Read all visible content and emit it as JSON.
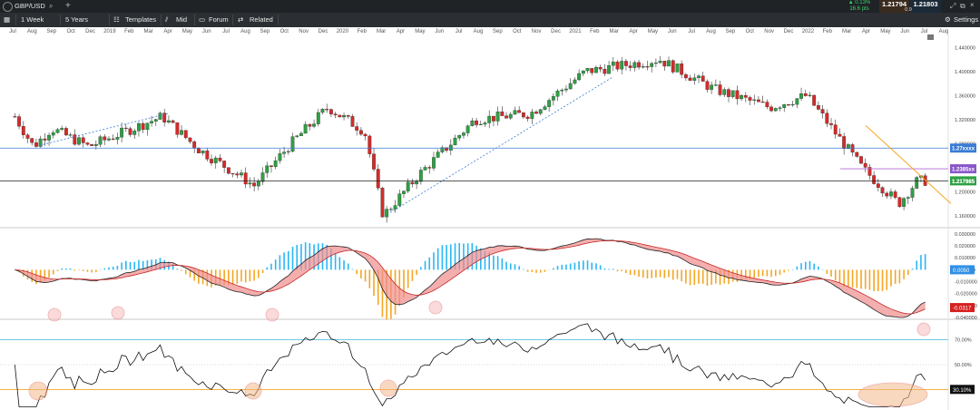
{
  "topbar": {
    "symbol": "GBP/USD"
  },
  "toolbar": {
    "items": [
      {
        "label": "1 Week"
      },
      {
        "label": "5 Years"
      },
      {
        "label": "Templates"
      },
      {
        "label": "Mid"
      },
      {
        "label": "Forum"
      },
      {
        "label": "Related"
      }
    ],
    "settings_label": "Settings"
  },
  "quote": {
    "change_pct": "▲ 0.13%",
    "change_pips": "16.6 pts",
    "bid": "1.21794",
    "ask": "1.21803",
    "spread": "0.9"
  },
  "colors": {
    "up": "#2ea043",
    "down": "#d62a2a",
    "macd_pos": "#29b6f6",
    "macd_neg": "#f5a623",
    "rsi_line": "#111111",
    "band": "#f3b98a",
    "resistance": "#f5a623",
    "support": "#3a7bd5"
  },
  "chart_data": [
    {
      "type": "candlestick",
      "title": "GBP/USD",
      "x_ticks": [
        "Jul",
        "Aug",
        "Sep",
        "Oct",
        "Dec",
        "2019",
        "Feb",
        "Mar",
        "Apr",
        "May",
        "Jun",
        "Jul",
        "Aug",
        "Sep",
        "Oct",
        "Nov",
        "Dec",
        "2020",
        "Feb",
        "Mar",
        "Apr",
        "May",
        "Jun",
        "Jul",
        "Aug",
        "Sep",
        "Oct",
        "Nov",
        "Dec",
        "2021",
        "Feb",
        "Mar",
        "Apr",
        "May",
        "Jun",
        "Jul",
        "Aug",
        "Sep",
        "Oct",
        "Nov",
        "Dec",
        "2022",
        "Feb",
        "Mar",
        "Apr",
        "May",
        "Jun",
        "Jul",
        "Aug"
      ],
      "y_ticks": [
        "1.440000",
        "1.400000",
        "1.360000",
        "1.320000",
        "1.280000",
        "1.240000",
        "1.200000",
        "1.160000"
      ],
      "ylim": [
        1.14,
        1.46
      ],
      "key_points": [
        {
          "date": "2018-07",
          "price": 1.325
        },
        {
          "date": "2018-08",
          "price": 1.275
        },
        {
          "date": "2018-09",
          "price": 1.305
        },
        {
          "date": "2018-11",
          "price": 1.275
        },
        {
          "date": "2019-03",
          "price": 1.325
        },
        {
          "date": "2019-05",
          "price": 1.27
        },
        {
          "date": "2019-08",
          "price": 1.21
        },
        {
          "date": "2019-10",
          "price": 1.28
        },
        {
          "date": "2019-12",
          "price": 1.34
        },
        {
          "date": "2020-02",
          "price": 1.3
        },
        {
          "date": "2020-03",
          "price": 1.16
        },
        {
          "date": "2020-05",
          "price": 1.23
        },
        {
          "date": "2020-08",
          "price": 1.32
        },
        {
          "date": "2020-11",
          "price": 1.33
        },
        {
          "date": "2021-02",
          "price": 1.4
        },
        {
          "date": "2021-06",
          "price": 1.42
        },
        {
          "date": "2021-09",
          "price": 1.37
        },
        {
          "date": "2021-12",
          "price": 1.34
        },
        {
          "date": "2022-02",
          "price": 1.36
        },
        {
          "date": "2022-05",
          "price": 1.24
        },
        {
          "date": "2022-07",
          "price": 1.18
        },
        {
          "date": "2022-08",
          "price": 1.2179
        }
      ],
      "horizontal_lines": [
        1.2725,
        1.2179
      ],
      "price_labels": [
        "1.27xxxx",
        "1.2385xx",
        "1.217985"
      ],
      "last_price": "1.217985"
    },
    {
      "type": "macd",
      "y_ticks": [
        "0.030000",
        "0.020000",
        "0.010000",
        "0.000000",
        "-0.010000",
        "-0.020000",
        "-0.030000",
        "-0.040000"
      ],
      "ylim": [
        -0.04,
        0.033
      ],
      "labels": {
        "signal": "0.0050",
        "macd": "-0.0317"
      }
    },
    {
      "type": "rsi",
      "y_ticks": [
        "70.00%",
        "50.00%",
        "30.00%"
      ],
      "ylim": [
        15,
        85
      ],
      "levels": [
        70,
        30
      ],
      "last_value": "30.10%"
    }
  ]
}
